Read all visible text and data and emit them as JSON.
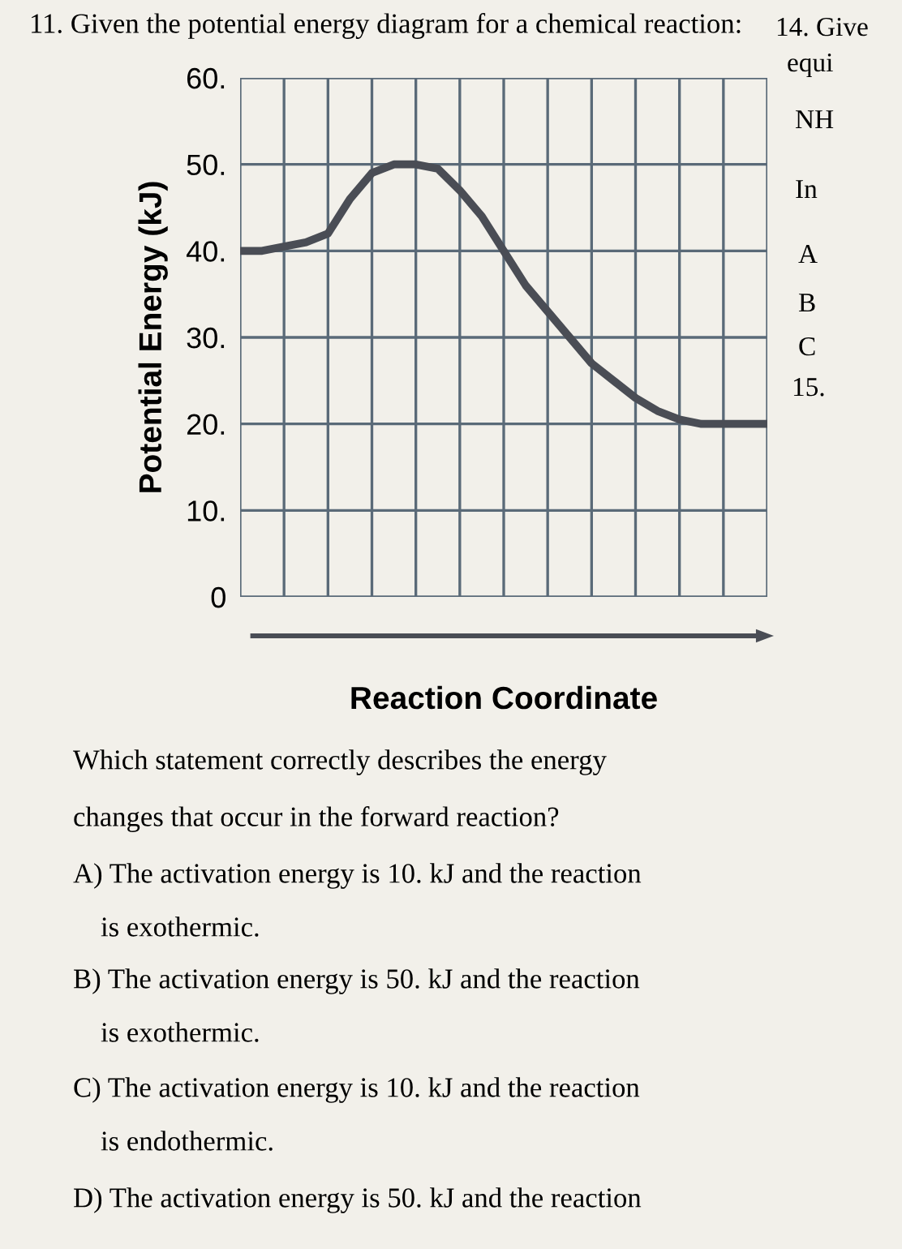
{
  "chart_data": {
    "type": "line",
    "title": "11. Given the potential energy diagram for a chemical reaction:",
    "xlabel": "Reaction Coordinate",
    "ylabel": "Potential Energy (kJ)",
    "categories": [
      null,
      null,
      null,
      null,
      null,
      null,
      null,
      null,
      null,
      null,
      null,
      null,
      null,
      null,
      null,
      null,
      null,
      null,
      null,
      null,
      null,
      null,
      null,
      null,
      null
    ],
    "series": [
      {
        "color": "#4a4d55",
        "values": [
          40,
          40,
          40.5,
          41,
          42,
          46,
          49,
          50,
          50,
          49.5,
          47,
          44,
          40,
          36,
          33,
          30,
          27,
          25,
          23,
          21.5,
          20.5,
          20,
          20,
          20,
          20
        ]
      }
    ],
    "ylim": [
      0,
      60
    ],
    "yticks": [
      0,
      {
        "value": 10,
        "label": "10."
      },
      {
        "value": 20,
        "label": "20."
      },
      {
        "value": 30,
        "label": "30."
      },
      {
        "value": 40,
        "label": "40."
      },
      {
        "value": 50,
        "label": "50."
      },
      {
        "value": 60,
        "label": "60."
      }
    ],
    "grid": true,
    "marker": "none",
    "line_style": "solid",
    "legend": false,
    "annotations": [
      "14. Give",
      "equi",
      "NH",
      "In",
      "A",
      "B",
      "C",
      "15.",
      "Which statement correctly describes the energy",
      "changes that occur in the forward reaction?",
      "A) The activation energy is 10. kJ and the reaction",
      "is exothermic.",
      "B) The activation energy is 50. kJ and the reaction",
      "is exothermic.",
      "C) The activation energy is 10. kJ and the reaction",
      "is endothermic.",
      "D) The activation energy is 50. kJ and the reaction"
    ]
  }
}
